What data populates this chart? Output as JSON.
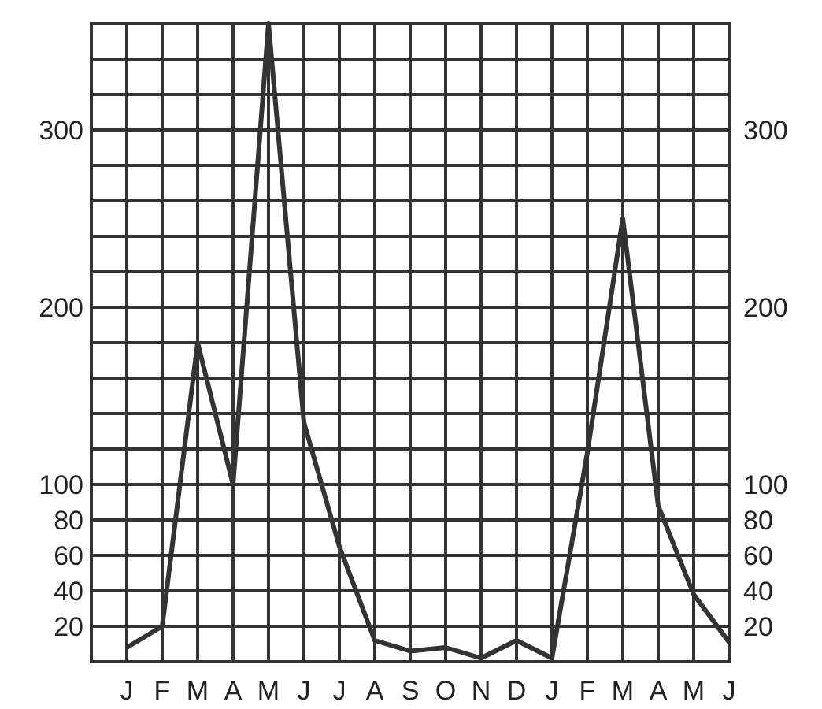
{
  "chart_data": {
    "type": "line",
    "categories": [
      "J",
      "F",
      "M",
      "A",
      "M",
      "J",
      "J",
      "A",
      "S",
      "O",
      "N",
      "D",
      "J",
      "F",
      "M",
      "A",
      "M",
      "J"
    ],
    "series": [
      {
        "color": "#333333",
        "values": [
          8,
          20,
          180,
          100,
          360,
          135,
          65,
          12,
          6,
          8,
          2,
          12,
          2,
          118,
          250,
          88,
          38,
          11
        ]
      }
    ],
    "ylim": [
      0,
      360
    ],
    "yticks": [
      20,
      40,
      60,
      80,
      100,
      {
        "value": 120,
        "label": null
      },
      {
        "value": 140,
        "label": null
      },
      {
        "value": 160,
        "label": null
      },
      {
        "value": 180,
        "label": null
      },
      200,
      {
        "value": 220,
        "label": null
      },
      {
        "value": 240,
        "label": null
      },
      {
        "value": 260,
        "label": null
      },
      {
        "value": 280,
        "label": null
      },
      300,
      {
        "value": 320,
        "label": null
      },
      {
        "value": 340,
        "label": null
      }
    ],
    "y2lim": [
      0,
      360
    ],
    "y2ticks": [
      20,
      40,
      60,
      80,
      100,
      {
        "value": 120,
        "label": null
      },
      {
        "value": 140,
        "label": null
      },
      {
        "value": 160,
        "label": null
      },
      {
        "value": 180,
        "label": null
      },
      200,
      {
        "value": 220,
        "label": null
      },
      {
        "value": 240,
        "label": null
      },
      {
        "value": 260,
        "label": null
      },
      {
        "value": 280,
        "label": null
      },
      300,
      {
        "value": 320,
        "label": null
      },
      {
        "value": 340,
        "label": null
      }
    ],
    "grid": true,
    "marker": "none",
    "line_style": "solid"
  }
}
